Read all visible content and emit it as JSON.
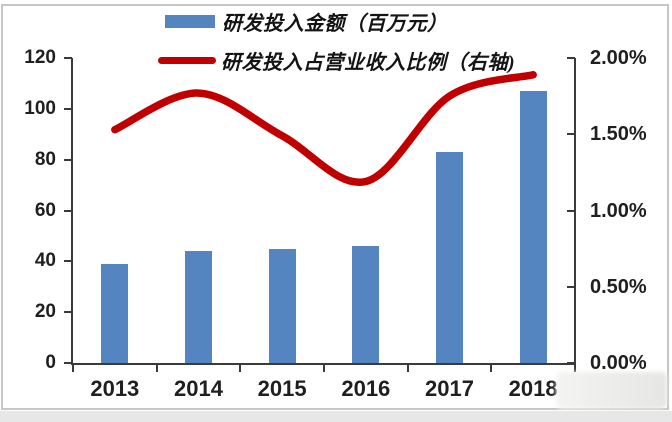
{
  "frame": {
    "background": "#ffffff",
    "border_color": "#c6c6c6",
    "page_strip_color": "#e7e7e7"
  },
  "chart_data": {
    "type": "combo-bar-line",
    "title": "",
    "categories": [
      "2013",
      "2014",
      "2015",
      "2016",
      "2017",
      "2018"
    ],
    "series": [
      {
        "name": "研发投入金额（百万元）",
        "type": "bar",
        "axis": "left",
        "color": "#5585c0",
        "values": [
          39,
          44,
          45,
          46,
          83,
          107
        ]
      },
      {
        "name": "研发投入占营业收入比例（右轴)",
        "type": "line",
        "axis": "right",
        "color": "#c00000",
        "values": [
          1.53,
          1.77,
          1.49,
          1.19,
          1.75,
          1.89
        ]
      }
    ],
    "left_axis": {
      "min": 0,
      "max": 120,
      "tick_labels": [
        "0",
        "20",
        "40",
        "60",
        "80",
        "100",
        "120"
      ]
    },
    "right_axis": {
      "min": 0,
      "max": 2,
      "tick_labels": [
        "0.00%",
        "0.50%",
        "1.00%",
        "1.50%",
        "2.00%"
      ]
    },
    "grid": false,
    "legend_position": "top",
    "axis_text_color": "#1f1f1f",
    "axis_line_color": "#3a3a3a"
  },
  "watermark": {
    "type": "blurred-box"
  }
}
